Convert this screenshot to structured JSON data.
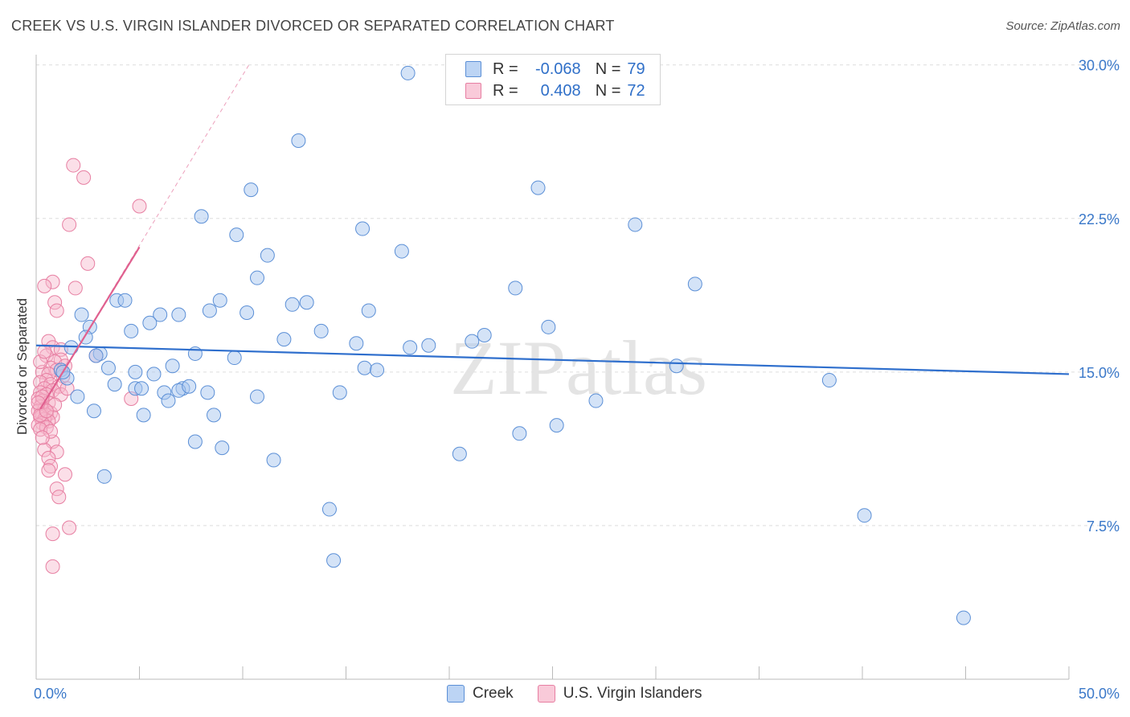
{
  "title": "CREEK VS U.S. VIRGIN ISLANDER DIVORCED OR SEPARATED CORRELATION CHART",
  "source": "Source: ZipAtlas.com",
  "watermark": "ZIPatlas",
  "legend": {
    "rows": [
      {
        "r_label": "R =",
        "r_value": "-0.068",
        "n_label": "N =",
        "n_value": "79"
      },
      {
        "r_label": "R =",
        "r_value": "0.408",
        "n_label": "N =",
        "n_value": "72"
      }
    ]
  },
  "bottom_legend": [
    "Creek",
    "U.S. Virgin Islanders"
  ],
  "colors": {
    "creek_fill": "#a9c8f0",
    "creek_stroke": "#5b8fd6",
    "creek_line": "#2f6fcd",
    "usvi_fill": "#f7b8cc",
    "usvi_stroke": "#e77fa2",
    "usvi_line": "#e0608f",
    "grid": "#dddddd",
    "axis_text": "#3a78c9"
  },
  "chart_data": {
    "type": "scatter",
    "title": "CREEK VS U.S. VIRGIN ISLANDER DIVORCED OR SEPARATED CORRELATION CHART",
    "xlabel": "",
    "ylabel": "Divorced or Separated",
    "xlim": [
      0,
      50
    ],
    "ylim": [
      0,
      30.5
    ],
    "x_tick_labels": [
      "0.0%",
      "50.0%"
    ],
    "y_ticks": [
      7.5,
      15.0,
      22.5,
      30.0
    ],
    "y_tick_labels": [
      "7.5%",
      "15.0%",
      "22.5%",
      "30.0%"
    ],
    "grid": true,
    "series": [
      {
        "name": "Creek",
        "R": -0.068,
        "N": 79,
        "trend": {
          "x": [
            0,
            50
          ],
          "y": [
            16.3,
            14.9
          ]
        },
        "points": [
          [
            18.0,
            29.6
          ],
          [
            12.7,
            26.3
          ],
          [
            10.4,
            23.9
          ],
          [
            24.3,
            24.0
          ],
          [
            8.0,
            22.6
          ],
          [
            15.8,
            22.0
          ],
          [
            29.0,
            22.2
          ],
          [
            9.7,
            21.7
          ],
          [
            17.7,
            20.9
          ],
          [
            11.2,
            20.7
          ],
          [
            10.7,
            19.6
          ],
          [
            23.2,
            19.1
          ],
          [
            31.9,
            19.3
          ],
          [
            3.9,
            18.5
          ],
          [
            4.3,
            18.5
          ],
          [
            8.9,
            18.5
          ],
          [
            12.4,
            18.3
          ],
          [
            13.1,
            18.4
          ],
          [
            8.4,
            18.0
          ],
          [
            10.2,
            17.9
          ],
          [
            16.1,
            18.0
          ],
          [
            2.2,
            17.8
          ],
          [
            6.0,
            17.8
          ],
          [
            6.9,
            17.8
          ],
          [
            5.5,
            17.4
          ],
          [
            2.6,
            17.2
          ],
          [
            4.6,
            17.0
          ],
          [
            13.8,
            17.0
          ],
          [
            21.7,
            16.8
          ],
          [
            24.8,
            17.2
          ],
          [
            2.4,
            16.7
          ],
          [
            15.5,
            16.4
          ],
          [
            19.0,
            16.3
          ],
          [
            18.1,
            16.2
          ],
          [
            21.1,
            16.5
          ],
          [
            1.7,
            16.2
          ],
          [
            3.1,
            15.9
          ],
          [
            7.7,
            15.9
          ],
          [
            9.6,
            15.7
          ],
          [
            6.6,
            15.3
          ],
          [
            31.0,
            15.3
          ],
          [
            3.5,
            15.2
          ],
          [
            15.9,
            15.2
          ],
          [
            1.2,
            15.1
          ],
          [
            5.7,
            14.9
          ],
          [
            1.5,
            14.7
          ],
          [
            38.4,
            14.6
          ],
          [
            3.8,
            14.4
          ],
          [
            7.1,
            14.2
          ],
          [
            4.8,
            14.2
          ],
          [
            5.1,
            14.2
          ],
          [
            6.9,
            14.1
          ],
          [
            6.2,
            14.0
          ],
          [
            8.3,
            14.0
          ],
          [
            14.7,
            14.0
          ],
          [
            2.0,
            13.8
          ],
          [
            10.7,
            13.8
          ],
          [
            6.4,
            13.6
          ],
          [
            27.1,
            13.6
          ],
          [
            2.8,
            13.1
          ],
          [
            5.2,
            12.9
          ],
          [
            8.6,
            12.9
          ],
          [
            25.2,
            12.4
          ],
          [
            23.4,
            12.0
          ],
          [
            7.7,
            11.6
          ],
          [
            9.0,
            11.3
          ],
          [
            20.5,
            11.0
          ],
          [
            11.5,
            10.7
          ],
          [
            3.3,
            9.9
          ],
          [
            14.2,
            8.3
          ],
          [
            40.1,
            8.0
          ],
          [
            14.4,
            5.8
          ],
          [
            44.9,
            3.0
          ],
          [
            1.3,
            15.0
          ],
          [
            2.9,
            15.8
          ],
          [
            4.8,
            15.0
          ],
          [
            7.4,
            14.3
          ],
          [
            12.0,
            16.6
          ],
          [
            16.5,
            15.1
          ]
        ]
      },
      {
        "name": "U.S. Virgin Islanders",
        "R": 0.408,
        "N": 72,
        "trend": {
          "x": [
            0.2,
            5.0
          ],
          "y": [
            13.2,
            21.1
          ]
        },
        "trend_extended": {
          "x": [
            0.2,
            10.3
          ],
          "y": [
            13.2,
            30.0
          ]
        },
        "points": [
          [
            1.8,
            25.1
          ],
          [
            2.3,
            24.5
          ],
          [
            5.0,
            23.1
          ],
          [
            1.6,
            22.2
          ],
          [
            2.5,
            20.3
          ],
          [
            0.8,
            19.4
          ],
          [
            0.4,
            19.2
          ],
          [
            1.9,
            19.1
          ],
          [
            0.9,
            18.4
          ],
          [
            1.0,
            18.0
          ],
          [
            0.6,
            16.5
          ],
          [
            0.8,
            16.2
          ],
          [
            1.2,
            16.1
          ],
          [
            0.5,
            15.8
          ],
          [
            2.9,
            15.8
          ],
          [
            1.2,
            15.6
          ],
          [
            0.9,
            15.5
          ],
          [
            0.7,
            15.2
          ],
          [
            1.4,
            15.3
          ],
          [
            1.0,
            15.1
          ],
          [
            0.3,
            15.0
          ],
          [
            0.6,
            14.9
          ],
          [
            1.3,
            14.8
          ],
          [
            0.5,
            14.6
          ],
          [
            0.2,
            14.5
          ],
          [
            0.7,
            14.4
          ],
          [
            1.1,
            14.3
          ],
          [
            0.4,
            14.2
          ],
          [
            0.8,
            14.1
          ],
          [
            0.2,
            14.0
          ],
          [
            0.5,
            13.9
          ],
          [
            1.2,
            13.9
          ],
          [
            4.6,
            13.7
          ],
          [
            0.1,
            13.7
          ],
          [
            0.3,
            13.6
          ],
          [
            0.6,
            13.5
          ],
          [
            0.2,
            13.3
          ],
          [
            0.4,
            13.2
          ],
          [
            0.1,
            13.1
          ],
          [
            0.7,
            13.0
          ],
          [
            0.3,
            12.9
          ],
          [
            0.5,
            12.9
          ],
          [
            0.2,
            12.8
          ],
          [
            0.8,
            12.8
          ],
          [
            0.4,
            12.7
          ],
          [
            0.6,
            12.6
          ],
          [
            0.3,
            12.5
          ],
          [
            0.1,
            12.4
          ],
          [
            0.5,
            12.3
          ],
          [
            0.2,
            12.2
          ],
          [
            0.8,
            11.6
          ],
          [
            0.4,
            11.2
          ],
          [
            1.0,
            11.1
          ],
          [
            0.6,
            10.8
          ],
          [
            0.7,
            10.4
          ],
          [
            0.6,
            10.2
          ],
          [
            1.4,
            10.0
          ],
          [
            1.0,
            9.3
          ],
          [
            1.1,
            8.9
          ],
          [
            1.6,
            7.4
          ],
          [
            0.8,
            7.1
          ],
          [
            0.8,
            5.5
          ],
          [
            0.3,
            13.8
          ],
          [
            0.9,
            13.4
          ],
          [
            0.2,
            15.5
          ],
          [
            0.4,
            16.0
          ],
          [
            1.5,
            14.2
          ],
          [
            0.7,
            12.1
          ],
          [
            0.3,
            11.8
          ],
          [
            0.2,
            12.9
          ],
          [
            0.5,
            13.1
          ],
          [
            0.1,
            13.5
          ]
        ]
      }
    ]
  }
}
